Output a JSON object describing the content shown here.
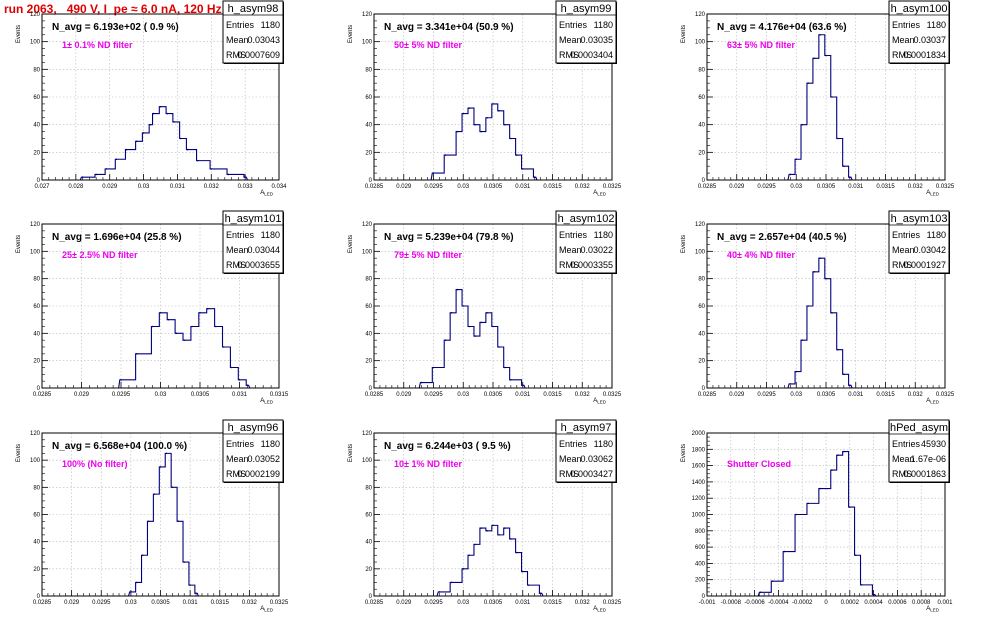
{
  "run_title": "run 2063,   490 V, I_pe ≈ 6.0 nA, 120 Hz",
  "stat_labels": {
    "entries": "Entries",
    "mean": "Mean",
    "rms": "RMS"
  },
  "chart_data": [
    {
      "type": "histogram",
      "hist_name": "h_asym98",
      "navg": "N_avg = 6.193e+02 ( 0.9 %)",
      "filter": "1± 0.1% ND filter",
      "stats": {
        "entries": "1180",
        "mean": "0.03043",
        "rms": "0.0007609"
      },
      "xlabel": "A_LED",
      "ylabel": "Events",
      "xlim": [
        0.027,
        0.034
      ],
      "ylim": [
        0,
        120
      ],
      "xticks": [
        "0.027",
        "0.028",
        "0.029",
        "0.03",
        "0.031",
        "0.032",
        "0.033",
        "0.034"
      ],
      "yticks": [
        "0",
        "20",
        "40",
        "60",
        "80",
        "100",
        "120"
      ],
      "x": [
        0.0282,
        0.0286,
        0.0289,
        0.0292,
        0.0295,
        0.0298,
        0.03,
        0.0302,
        0.0303,
        0.0305,
        0.0307,
        0.0309,
        0.0311,
        0.0313,
        0.0316,
        0.032,
        0.0325,
        0.033
      ],
      "values": [
        2,
        4,
        8,
        15,
        22,
        28,
        34,
        40,
        48,
        53,
        48,
        42,
        30,
        22,
        14,
        8,
        4,
        2
      ]
    },
    {
      "type": "histogram",
      "hist_name": "h_asym99",
      "navg": "N_avg = 3.341e+04 (50.9 %)",
      "filter": "50± 5% ND filter",
      "stats": {
        "entries": "1180",
        "mean": "0.03035",
        "rms": "0.0003404"
      },
      "xlabel": "A_LED",
      "ylabel": "Events",
      "xlim": [
        0.0285,
        0.0325
      ],
      "ylim": [
        0,
        120
      ],
      "xticks": [
        "0.0285",
        "0.029",
        "0.0295",
        "0.03",
        "0.0305",
        "0.031",
        "0.0315",
        "0.032",
        "0.0325"
      ],
      "yticks": [
        "0",
        "20",
        "40",
        "60",
        "80",
        "100",
        "120"
      ],
      "x": [
        0.0295,
        0.0297,
        0.0299,
        0.03,
        0.0301,
        0.0302,
        0.0303,
        0.0304,
        0.0305,
        0.0306,
        0.0307,
        0.0308,
        0.0309,
        0.031,
        0.0312
      ],
      "values": [
        5,
        18,
        35,
        48,
        52,
        40,
        35,
        45,
        55,
        50,
        40,
        30,
        18,
        8,
        2
      ]
    },
    {
      "type": "histogram",
      "hist_name": "h_asym100",
      "navg": "N_avg = 4.176e+04 (63.6 %)",
      "filter": "63± 5% ND filter",
      "stats": {
        "entries": "1180",
        "mean": "0.03037",
        "rms": "0.0001834"
      },
      "xlabel": "A_LED",
      "ylabel": "Events",
      "xlim": [
        0.0285,
        0.0325
      ],
      "ylim": [
        0,
        120
      ],
      "xticks": [
        "0.0285",
        "0.029",
        "0.0295",
        "0.03",
        "0.0305",
        "0.031",
        "0.0315",
        "0.032",
        "0.0325"
      ],
      "yticks": [
        "0",
        "20",
        "40",
        "60",
        "80",
        "100",
        "120"
      ],
      "x": [
        0.0299,
        0.03,
        0.0301,
        0.0302,
        0.0303,
        0.0304,
        0.0305,
        0.0306,
        0.0307,
        0.0308,
        0.0309
      ],
      "values": [
        4,
        15,
        40,
        70,
        88,
        105,
        90,
        60,
        30,
        10,
        2
      ]
    },
    {
      "type": "histogram",
      "hist_name": "h_asym101",
      "navg": "N_avg = 1.696e+04 (25.8 %)",
      "filter": "25± 2.5% ND filter",
      "stats": {
        "entries": "1180",
        "mean": "0.03044",
        "rms": "0.0003655"
      },
      "xlabel": "A_LED",
      "ylabel": "Events",
      "xlim": [
        0.0285,
        0.0315
      ],
      "ylim": [
        0,
        120
      ],
      "xticks": [
        "0.0285",
        "0.029",
        "0.0295",
        "0.03",
        "0.0305",
        "0.031",
        "0.0315"
      ],
      "yticks": [
        "0",
        "20",
        "40",
        "60",
        "80",
        "100",
        "120"
      ],
      "x": [
        0.0295,
        0.0297,
        0.0299,
        0.03,
        0.0301,
        0.0302,
        0.0303,
        0.0304,
        0.0305,
        0.0306,
        0.0307,
        0.0308,
        0.0309,
        0.031,
        0.0311
      ],
      "values": [
        6,
        25,
        45,
        55,
        50,
        40,
        35,
        45,
        55,
        58,
        45,
        30,
        15,
        6,
        2
      ]
    },
    {
      "type": "histogram",
      "hist_name": "h_asym102",
      "navg": "N_avg = 5.239e+04 (79.8 %)",
      "filter": "79± 5% ND filter",
      "stats": {
        "entries": "1180",
        "mean": "0.03022",
        "rms": "0.0003355"
      },
      "xlabel": "A_LED",
      "ylabel": "Events",
      "xlim": [
        0.0285,
        0.0325
      ],
      "ylim": [
        0,
        120
      ],
      "xticks": [
        "0.0285",
        "0.029",
        "0.0295",
        "0.03",
        "0.0305",
        "0.031",
        "0.0315",
        "0.032",
        "0.0325"
      ],
      "yticks": [
        "0",
        "20",
        "40",
        "60",
        "80",
        "100",
        "120"
      ],
      "x": [
        0.0293,
        0.0295,
        0.0297,
        0.0298,
        0.0299,
        0.03,
        0.0301,
        0.0302,
        0.0303,
        0.0304,
        0.0305,
        0.0306,
        0.0307,
        0.0308,
        0.031
      ],
      "values": [
        4,
        15,
        35,
        55,
        72,
        60,
        45,
        38,
        48,
        55,
        45,
        30,
        15,
        6,
        2
      ]
    },
    {
      "type": "histogram",
      "hist_name": "h_asym103",
      "navg": "N_avg = 2.657e+04 (40.5 %)",
      "filter": "40± 4% ND filter",
      "stats": {
        "entries": "1180",
        "mean": "0.03042",
        "rms": "0.0001927"
      },
      "xlabel": "A_LED",
      "ylabel": "Events",
      "xlim": [
        0.0285,
        0.0325
      ],
      "ylim": [
        0,
        120
      ],
      "xticks": [
        "0.0285",
        "0.029",
        "0.0295",
        "0.03",
        "0.0305",
        "0.031",
        "0.0315",
        "0.032",
        "0.0325"
      ],
      "yticks": [
        "0",
        "20",
        "40",
        "60",
        "80",
        "100",
        "120"
      ],
      "x": [
        0.0299,
        0.03,
        0.0301,
        0.0302,
        0.0303,
        0.0304,
        0.0305,
        0.0306,
        0.0307,
        0.0308,
        0.0309
      ],
      "values": [
        3,
        12,
        35,
        60,
        85,
        95,
        80,
        55,
        28,
        10,
        2
      ]
    },
    {
      "type": "histogram",
      "hist_name": "h_asym96",
      "navg": "N_avg = 6.568e+04 (100.0 %)",
      "filter": "100% (No filter)",
      "stats": {
        "entries": "1180",
        "mean": "0.03052",
        "rms": "0.0002199"
      },
      "xlabel": "A_LED",
      "ylabel": "Events",
      "xlim": [
        0.0285,
        0.0325
      ],
      "ylim": [
        0,
        120
      ],
      "xticks": [
        "0.0285",
        "0.029",
        "0.0295",
        "0.03",
        "0.0305",
        "0.031",
        "0.0315",
        "0.032",
        "0.0325"
      ],
      "yticks": [
        "0",
        "20",
        "40",
        "60",
        "80",
        "100",
        "120"
      ],
      "x": [
        0.03,
        0.0301,
        0.0302,
        0.0303,
        0.0304,
        0.0305,
        0.0306,
        0.0307,
        0.0308,
        0.0309,
        0.031,
        0.0311
      ],
      "values": [
        3,
        10,
        30,
        55,
        75,
        95,
        105,
        80,
        55,
        25,
        8,
        2
      ]
    },
    {
      "type": "histogram",
      "hist_name": "h_asym97",
      "navg": "N_avg = 6.244e+03 ( 9.5 %)",
      "filter": "10± 1% ND filter",
      "stats": {
        "entries": "1180",
        "mean": "0.03062",
        "rms": "0.0003427"
      },
      "xlabel": "A_LED",
      "ylabel": "Events",
      "xlim": [
        0.0285,
        0.0325
      ],
      "ylim": [
        0,
        120
      ],
      "xticks": [
        "0.0285",
        "0.029",
        "0.0295",
        "0.03",
        "0.0305",
        "0.031",
        "0.0315",
        "0.032",
        "0.0325"
      ],
      "yticks": [
        "0",
        "20",
        "40",
        "60",
        "80",
        "100",
        "120"
      ],
      "x": [
        0.0296,
        0.0298,
        0.03,
        0.0301,
        0.0302,
        0.0303,
        0.0304,
        0.0305,
        0.0306,
        0.0307,
        0.0308,
        0.0309,
        0.031,
        0.0311,
        0.0313
      ],
      "values": [
        3,
        10,
        20,
        30,
        38,
        50,
        48,
        52,
        45,
        50,
        42,
        32,
        18,
        8,
        2
      ]
    },
    {
      "type": "histogram",
      "hist_name": "hPed_asym",
      "navg": "",
      "filter": "Shutter Closed",
      "stats": {
        "entries": "45930",
        "mean": "1.67e-06",
        "rms": "0.0001863"
      },
      "xlabel": "A_LED",
      "ylabel": "Events",
      "xlim": [
        -0.001,
        0.001
      ],
      "ylim": [
        0,
        2200
      ],
      "xticks": [
        "-0.001",
        "-0.0008",
        "-0.0006",
        "-0.0004",
        "-0.0002",
        "0",
        "0.0002",
        "0.0004",
        "0.0006",
        "0.0008",
        "0.001"
      ],
      "yticks": [
        "0",
        "200",
        "400",
        "600",
        "800",
        "1000",
        "1200",
        "1400",
        "1600",
        "1800",
        "2000"
      ],
      "x": [
        -0.00055,
        -0.00045,
        -0.00035,
        -0.00025,
        -0.00015,
        -5e-05,
        5e-05,
        0.0001,
        0.00015,
        0.0002,
        0.00025,
        0.0003,
        0.0004
      ],
      "values": [
        50,
        200,
        600,
        1100,
        1250,
        1450,
        1700,
        1900,
        1950,
        1200,
        550,
        150,
        20
      ]
    }
  ]
}
